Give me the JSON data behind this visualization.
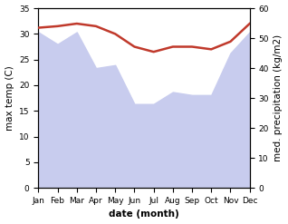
{
  "months": [
    "Jan",
    "Feb",
    "Mar",
    "Apr",
    "May",
    "Jun",
    "Jul",
    "Aug",
    "Sep",
    "Oct",
    "Nov",
    "Dec"
  ],
  "max_temp": [
    31.2,
    31.5,
    32.0,
    31.5,
    30.0,
    27.5,
    26.5,
    27.5,
    27.5,
    27.0,
    28.5,
    32.0
  ],
  "precipitation": [
    52,
    48,
    52,
    40,
    41,
    28,
    28,
    32,
    31,
    31,
    45,
    52
  ],
  "temp_color": "#c0392b",
  "precip_fill_color": "#c8ccee",
  "ylabel_left": "max temp (C)",
  "ylabel_right": "med. precipitation (kg/m2)",
  "xlabel": "date (month)",
  "ylim_left": [
    0,
    35
  ],
  "ylim_right": [
    0,
    60
  ],
  "temp_linewidth": 1.8,
  "label_fontsize": 7.5,
  "tick_fontsize": 6.5
}
